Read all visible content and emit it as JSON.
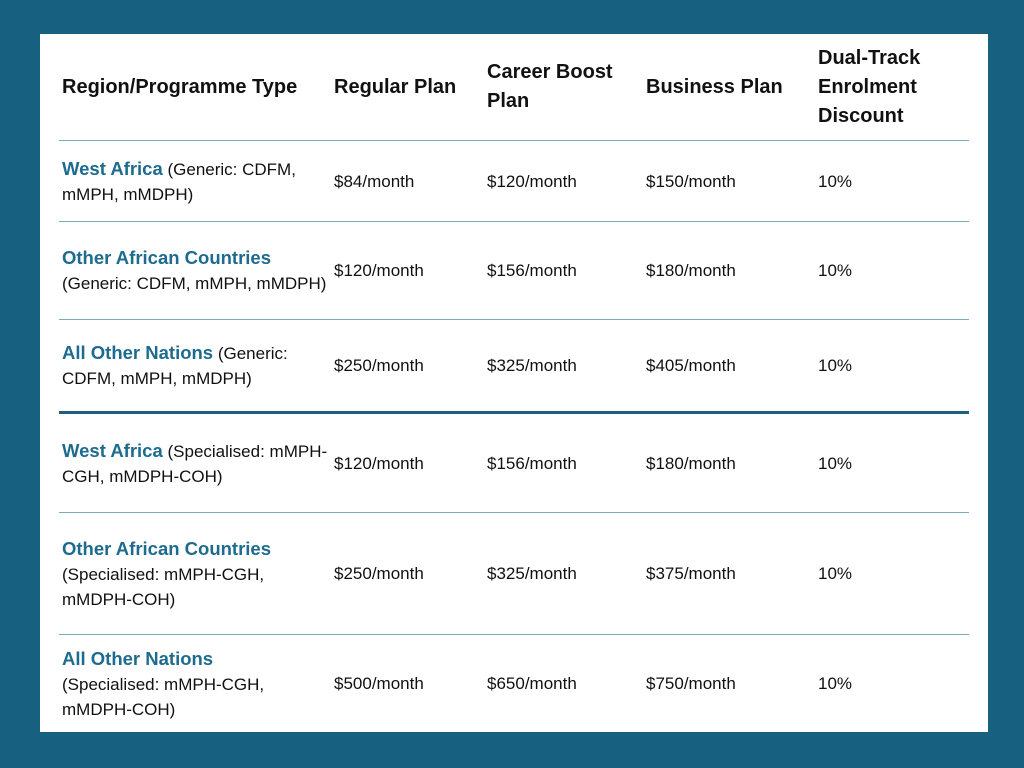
{
  "table": {
    "headers": [
      "Region/Programme Type",
      "Regular Plan",
      "Career Boost Plan",
      "Business Plan",
      "Dual-Track Enrolment Discount"
    ],
    "rows": [
      {
        "region": "West Africa",
        "type": " (Generic: CDFM, mMPH, mMDPH)",
        "regular": "$84/month",
        "career_boost": "$120/month",
        "business": "$150/month",
        "discount": "10%"
      },
      {
        "region": "Other African Countries",
        "type": "(Generic: CDFM, mMPH, mMDPH)",
        "regular": "$120/month",
        "career_boost": "$156/month",
        "business": "$180/month",
        "discount": "10%"
      },
      {
        "region": "All Other Nations",
        "type": " (Generic: CDFM, mMPH, mMDPH)",
        "regular": "$250/month",
        "career_boost": "$325/month",
        "business": "$405/month",
        "discount": "10%"
      },
      {
        "region": "West Africa",
        "type": " (Specialised: mMPH-CGH, mMDPH-COH)",
        "regular": "$120/month",
        "career_boost": "$156/month",
        "business": "$180/month",
        "discount": "10%"
      },
      {
        "region": "Other African Countries",
        "type": "(Specialised: mMPH-CGH, mMDPH-COH)",
        "regular": "$250/month",
        "career_boost": "$325/month",
        "business": "$375/month",
        "discount": "10%"
      },
      {
        "region": "All Other Nations",
        "type": "(Specialised: mMPH-CGH, mMDPH-COH)",
        "regular": "$500/month",
        "career_boost": "$650/month",
        "business": "$750/month",
        "discount": "10%"
      }
    ]
  }
}
